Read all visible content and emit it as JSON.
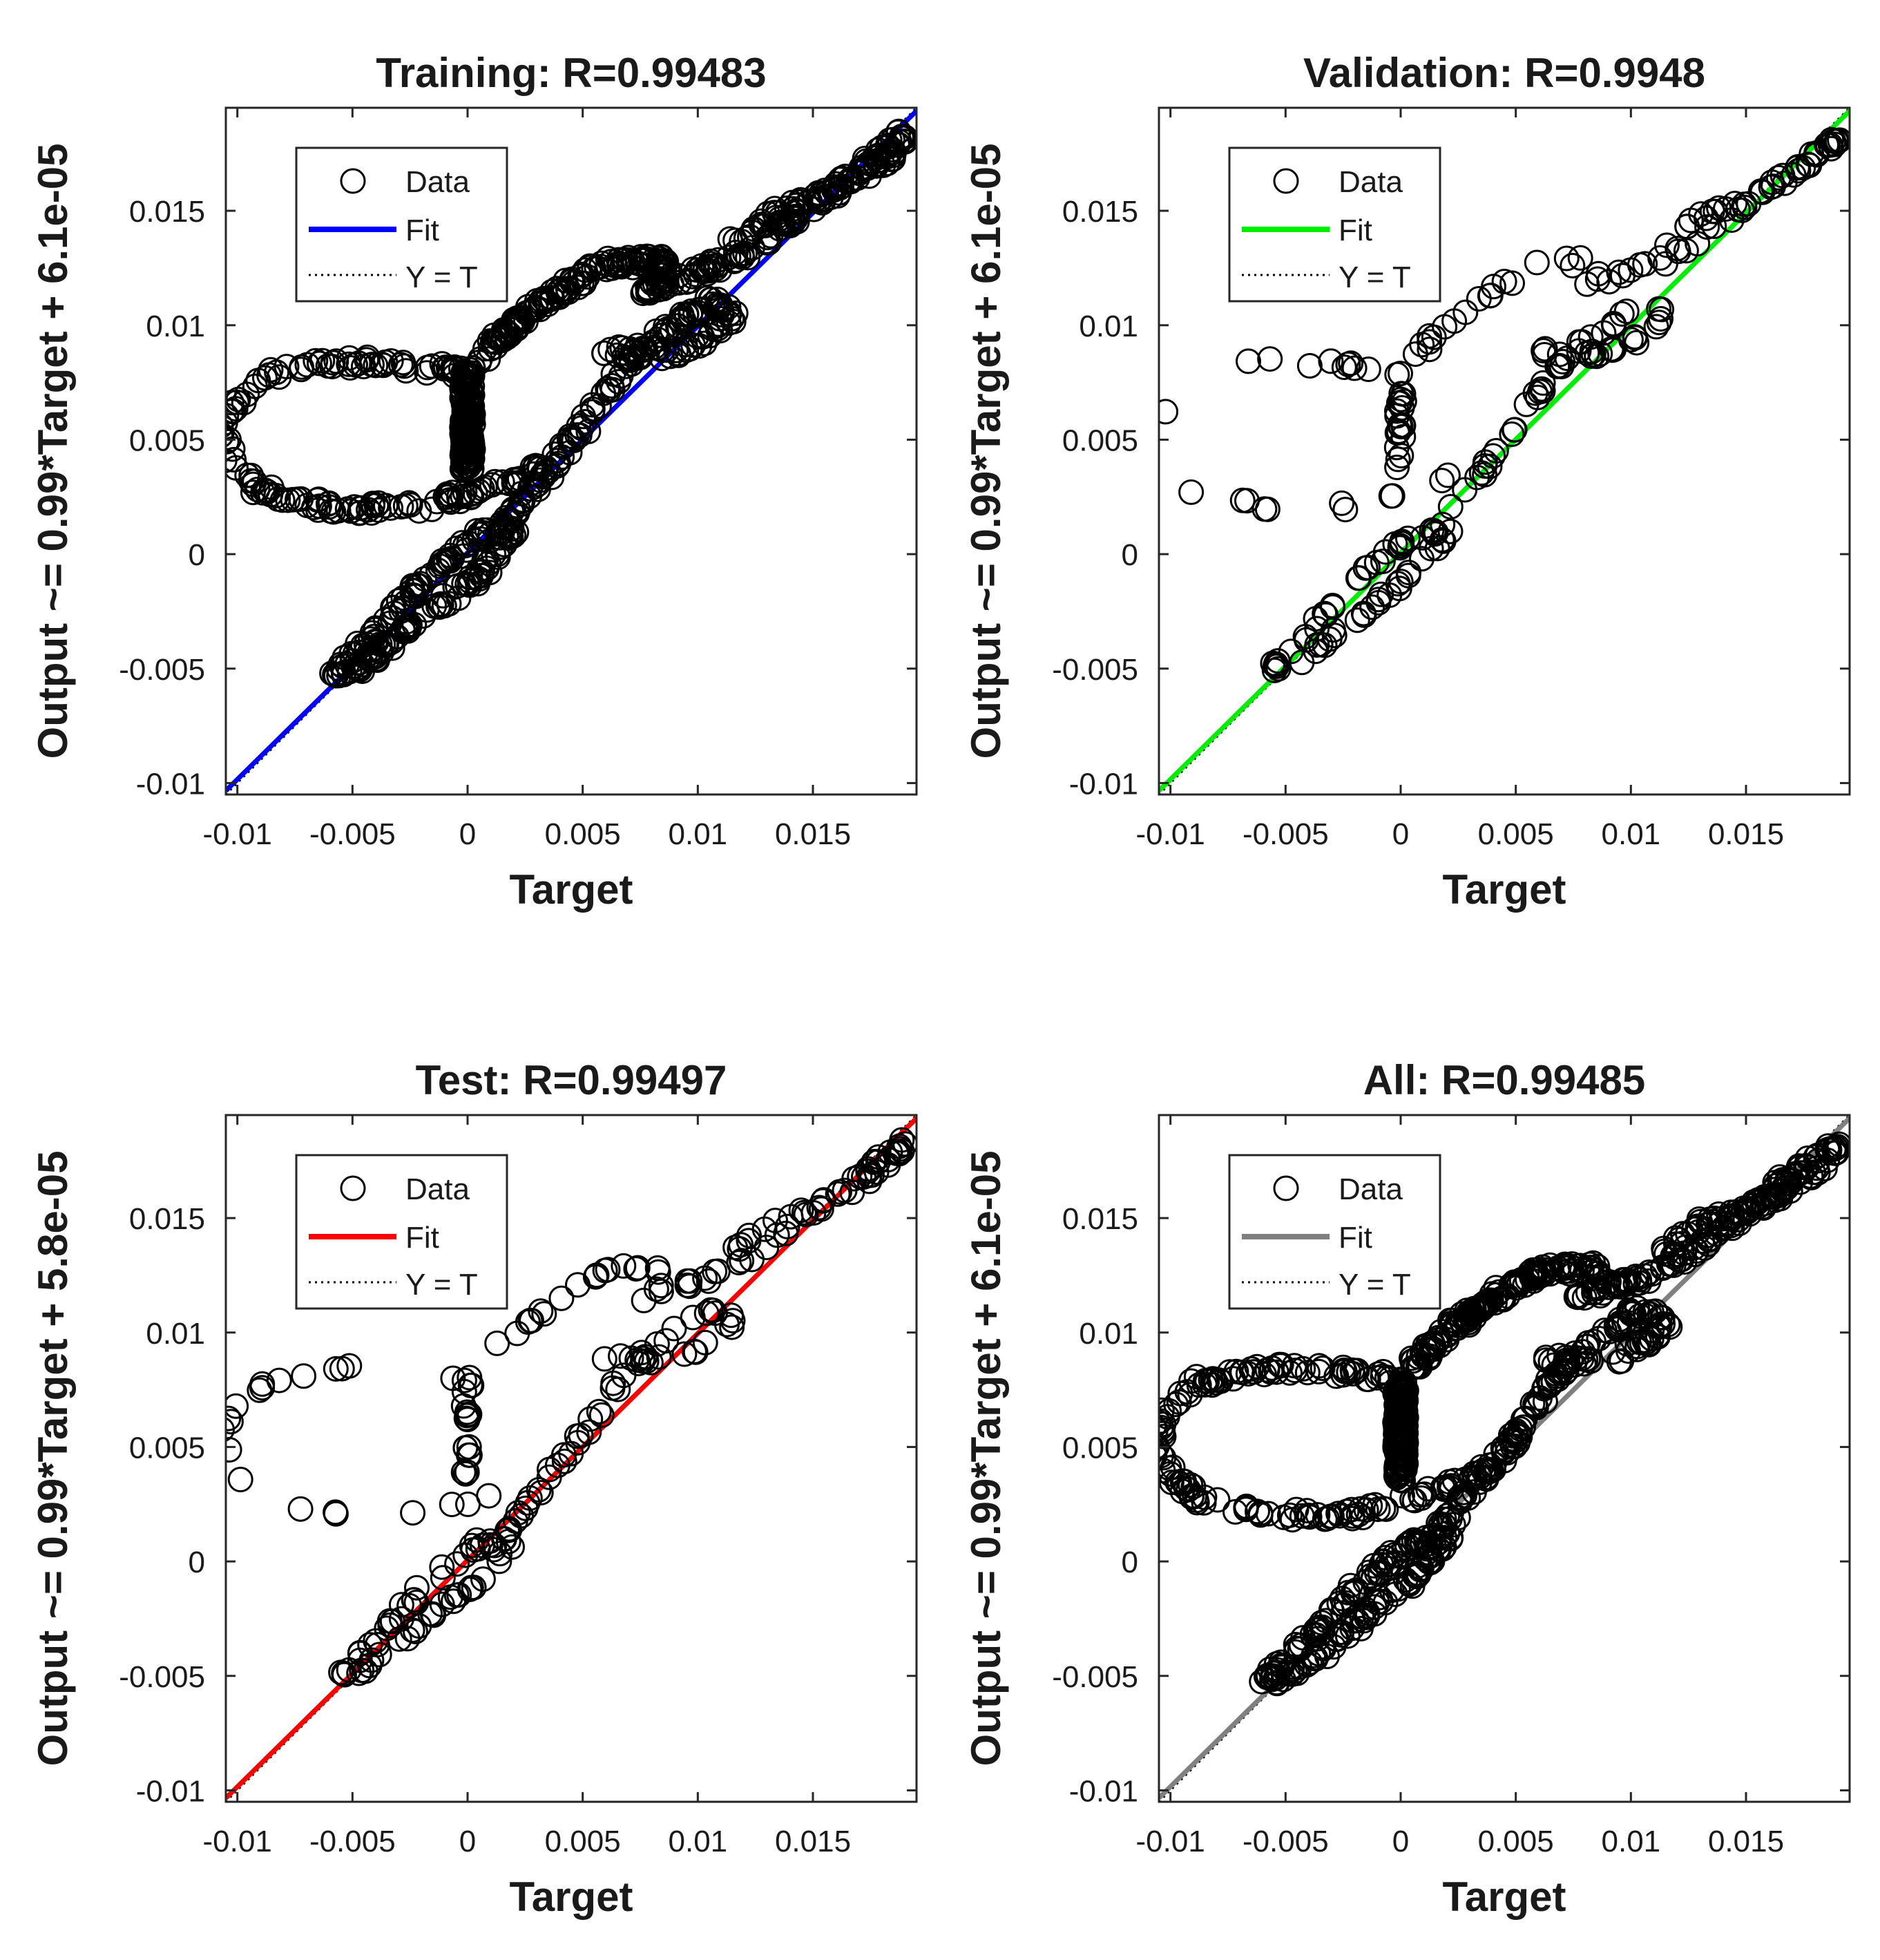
{
  "chart_data": [
    {
      "type": "scatter",
      "title": "Training: R=0.99483",
      "xlabel": "Target",
      "ylabel": "Output ~= 0.99*Target + 6.1e-05",
      "xlim": [
        -0.0105,
        0.0195
      ],
      "ylim": [
        -0.0105,
        0.0195
      ],
      "xticks": [
        -0.01,
        -0.005,
        0,
        0.005,
        0.01,
        0.015
      ],
      "xtick_labels": [
        "-0.01",
        "-0.005",
        "0",
        "0.005",
        "0.01",
        "0.015"
      ],
      "yticks": [
        -0.01,
        -0.005,
        0,
        0.005,
        0.01,
        0.015
      ],
      "ytick_labels": [
        "-0.01",
        "-0.005",
        "0",
        "0.005",
        "0.01",
        "0.015"
      ],
      "fit": {
        "slope": 0.99,
        "intercept": 6.1e-05,
        "color": "#0000ff"
      },
      "identity_line": true,
      "legend": {
        "position": "top-left",
        "entries": [
          "Data",
          "Fit",
          "Y = T"
        ]
      },
      "data_density": "dense"
    },
    {
      "type": "scatter",
      "title": "Validation: R=0.9948",
      "xlabel": "Target",
      "ylabel": "Output ~= 0.99*Target + 6.1e-05",
      "xlim": [
        -0.0105,
        0.0195
      ],
      "ylim": [
        -0.0105,
        0.0195
      ],
      "xticks": [
        -0.01,
        -0.005,
        0,
        0.005,
        0.01,
        0.015
      ],
      "xtick_labels": [
        "-0.01",
        "-0.005",
        "0",
        "0.005",
        "0.01",
        "0.015"
      ],
      "yticks": [
        -0.01,
        -0.005,
        0,
        0.005,
        0.01,
        0.015
      ],
      "ytick_labels": [
        "-0.01",
        "-0.005",
        "0",
        "0.005",
        "0.01",
        "0.015"
      ],
      "fit": {
        "slope": 0.99,
        "intercept": 6.1e-05,
        "color": "#00ee00"
      },
      "identity_line": true,
      "legend": {
        "position": "top-left",
        "entries": [
          "Data",
          "Fit",
          "Y = T"
        ]
      },
      "data_density": "sparse"
    },
    {
      "type": "scatter",
      "title": "Test: R=0.99497",
      "xlabel": "Target",
      "ylabel": "Output ~= 0.99*Target + 5.8e-05",
      "xlim": [
        -0.0105,
        0.0195
      ],
      "ylim": [
        -0.0105,
        0.0195
      ],
      "xticks": [
        -0.01,
        -0.005,
        0,
        0.005,
        0.01,
        0.015
      ],
      "xtick_labels": [
        "-0.01",
        "-0.005",
        "0",
        "0.005",
        "0.01",
        "0.015"
      ],
      "yticks": [
        -0.01,
        -0.005,
        0,
        0.005,
        0.01,
        0.015
      ],
      "ytick_labels": [
        "-0.01",
        "-0.005",
        "0",
        "0.005",
        "0.01",
        "0.015"
      ],
      "fit": {
        "slope": 0.99,
        "intercept": 5.8e-05,
        "color": "#ff0000"
      },
      "identity_line": true,
      "legend": {
        "position": "top-left",
        "entries": [
          "Data",
          "Fit",
          "Y = T"
        ]
      },
      "data_density": "sparse"
    },
    {
      "type": "scatter",
      "title": "All: R=0.99485",
      "xlabel": "Target",
      "ylabel": "Output ~= 0.99*Target + 6.1e-05",
      "xlim": [
        -0.0105,
        0.0195
      ],
      "ylim": [
        -0.0105,
        0.0195
      ],
      "xticks": [
        -0.01,
        -0.005,
        0,
        0.005,
        0.01,
        0.015
      ],
      "xtick_labels": [
        "-0.01",
        "-0.005",
        "0",
        "0.005",
        "0.01",
        "0.015"
      ],
      "yticks": [
        -0.01,
        -0.005,
        0,
        0.005,
        0.01,
        0.015
      ],
      "ytick_labels": [
        "-0.01",
        "-0.005",
        "0",
        "0.005",
        "0.01",
        "0.015"
      ],
      "fit": {
        "slope": 0.99,
        "intercept": 6.1e-05,
        "color": "#808080"
      },
      "identity_line": true,
      "legend": {
        "position": "top-left",
        "entries": [
          "Data",
          "Fit",
          "Y = T"
        ]
      },
      "data_density": "dense"
    }
  ]
}
